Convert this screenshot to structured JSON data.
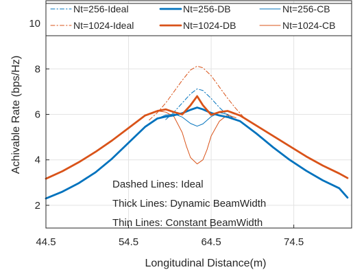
{
  "chart_data": {
    "type": "line",
    "title": "",
    "xlabel": "Longitudinal Distance(m)",
    "ylabel": "Achivable Rate (bps/Hz)",
    "xlim": [
      44.5,
      81.5
    ],
    "ylim": [
      1.0,
      11.0
    ],
    "xticks": [
      44.5,
      54.5,
      64.5,
      74.5
    ],
    "xtick_labels": [
      "44.5",
      "54.5",
      "64.5",
      "74.5"
    ],
    "yticks": [
      2,
      4,
      6,
      8,
      10
    ],
    "ytick_labels": [
      "2",
      "4",
      "6",
      "8",
      "10"
    ],
    "grid": true,
    "legend_position": "top, inside, 3 columns",
    "annotations": [
      "Dashed Lines: Ideal",
      "Thick Lines: Dynamic BeamWidth",
      "Thin Lines: Constant BeamWidth"
    ],
    "series": [
      {
        "name": "Nt=256-Ideal",
        "color": "#0072BD",
        "style": "dashdot",
        "weight": "thin",
        "points": [
          [
            59.0,
            5.77
          ],
          [
            60.0,
            6.1
          ],
          [
            61.0,
            6.5
          ],
          [
            62.0,
            6.9
          ],
          [
            62.8,
            7.12
          ],
          [
            63.5,
            7.05
          ],
          [
            64.5,
            6.7
          ],
          [
            65.5,
            6.3
          ],
          [
            66.5,
            5.96
          ],
          [
            67.0,
            5.8
          ]
        ]
      },
      {
        "name": "Nt=256-DB",
        "color": "#0072BD",
        "style": "solid",
        "weight": "thick",
        "points": [
          [
            44.5,
            2.3
          ],
          [
            46.5,
            2.6
          ],
          [
            48.5,
            2.98
          ],
          [
            50.5,
            3.45
          ],
          [
            52.5,
            4.05
          ],
          [
            54.5,
            4.75
          ],
          [
            56.5,
            5.45
          ],
          [
            58.0,
            5.82
          ],
          [
            59.0,
            5.9
          ],
          [
            60.0,
            5.96
          ],
          [
            61.0,
            6.05
          ],
          [
            62.0,
            6.2
          ],
          [
            62.8,
            6.3
          ],
          [
            63.5,
            6.22
          ],
          [
            64.5,
            6.06
          ],
          [
            65.5,
            5.95
          ],
          [
            66.5,
            5.88
          ],
          [
            68.0,
            5.7
          ],
          [
            70.0,
            5.15
          ],
          [
            72.0,
            4.55
          ],
          [
            74.0,
            4.0
          ],
          [
            76.0,
            3.52
          ],
          [
            78.0,
            3.1
          ],
          [
            80.0,
            2.75
          ],
          [
            81.0,
            2.34
          ]
        ]
      },
      {
        "name": "Nt=256-CB",
        "color": "#0072BD",
        "style": "solid",
        "weight": "thin",
        "points": [
          [
            58.0,
            5.82
          ],
          [
            59.0,
            5.97
          ],
          [
            60.0,
            6.02
          ],
          [
            61.0,
            5.88
          ],
          [
            62.0,
            5.6
          ],
          [
            62.8,
            5.48
          ],
          [
            63.5,
            5.58
          ],
          [
            64.5,
            5.9
          ],
          [
            65.5,
            6.08
          ],
          [
            66.5,
            6.0
          ],
          [
            67.5,
            5.75
          ]
        ]
      },
      {
        "name": "Nt=1024-Ideal",
        "color": "#D95319",
        "style": "dashdot",
        "weight": "thin",
        "points": [
          [
            57.0,
            5.75
          ],
          [
            58.0,
            6.08
          ],
          [
            59.0,
            6.5
          ],
          [
            60.0,
            7.0
          ],
          [
            61.0,
            7.5
          ],
          [
            62.0,
            7.95
          ],
          [
            62.8,
            8.12
          ],
          [
            63.5,
            8.05
          ],
          [
            64.5,
            7.7
          ],
          [
            65.5,
            7.2
          ],
          [
            66.5,
            6.7
          ],
          [
            67.5,
            6.25
          ],
          [
            68.5,
            5.85
          ],
          [
            69.0,
            5.75
          ]
        ]
      },
      {
        "name": "Nt=1024-DB",
        "color": "#D95319",
        "style": "solid",
        "weight": "thick",
        "points": [
          [
            44.5,
            3.17
          ],
          [
            46.5,
            3.5
          ],
          [
            48.5,
            3.9
          ],
          [
            50.5,
            4.35
          ],
          [
            52.5,
            4.85
          ],
          [
            54.5,
            5.4
          ],
          [
            56.5,
            5.95
          ],
          [
            58.0,
            6.15
          ],
          [
            59.0,
            6.22
          ],
          [
            60.0,
            6.1
          ],
          [
            61.0,
            6.0
          ],
          [
            62.0,
            6.4
          ],
          [
            62.8,
            6.8
          ],
          [
            63.5,
            6.4
          ],
          [
            64.5,
            5.98
          ],
          [
            65.5,
            6.1
          ],
          [
            66.5,
            6.15
          ],
          [
            68.0,
            5.95
          ],
          [
            70.0,
            5.5
          ],
          [
            72.0,
            5.05
          ],
          [
            74.0,
            4.6
          ],
          [
            76.0,
            4.15
          ],
          [
            78.0,
            3.75
          ],
          [
            80.0,
            3.4
          ],
          [
            81.0,
            3.2
          ]
        ]
      },
      {
        "name": "Nt=1024-CB",
        "color": "#D95319",
        "style": "solid",
        "weight": "thin",
        "points": [
          [
            58.0,
            6.15
          ],
          [
            59.0,
            6.1
          ],
          [
            60.0,
            5.9
          ],
          [
            61.0,
            5.2
          ],
          [
            61.5,
            4.6
          ],
          [
            62.0,
            4.1
          ],
          [
            62.8,
            3.82
          ],
          [
            63.5,
            4.0
          ],
          [
            64.0,
            4.45
          ],
          [
            64.5,
            5.05
          ],
          [
            65.5,
            5.7
          ],
          [
            66.5,
            5.98
          ],
          [
            67.5,
            5.85
          ]
        ]
      }
    ]
  }
}
